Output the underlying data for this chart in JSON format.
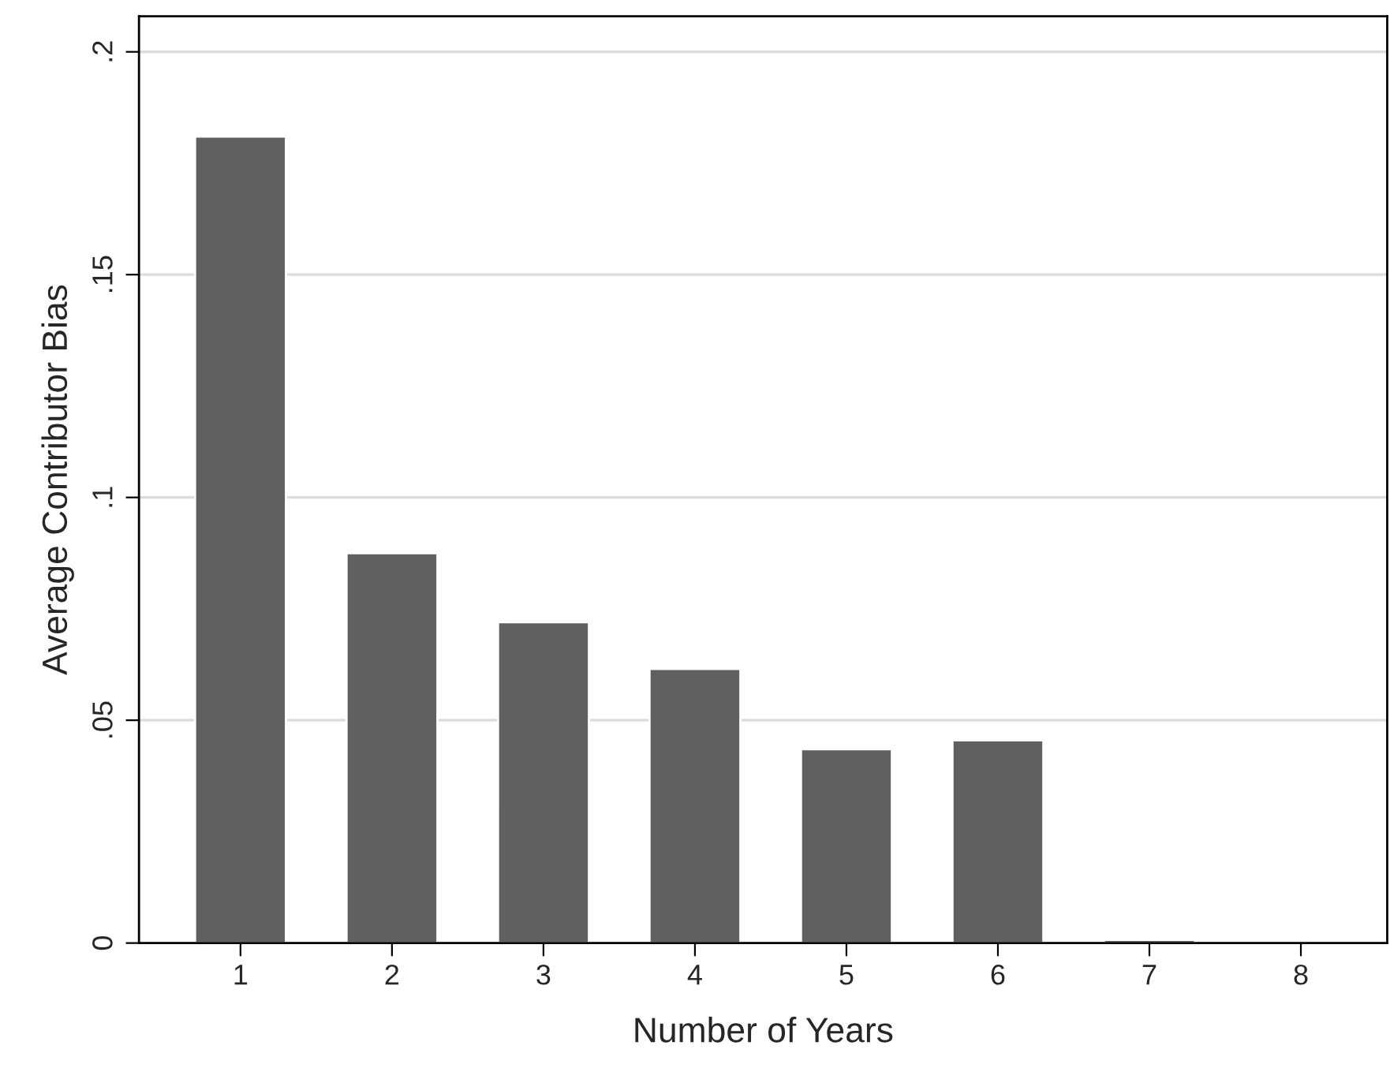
{
  "chart_data": {
    "type": "bar",
    "xlabel": "Number of Years",
    "ylabel": "Average Contributor Bias",
    "categories": [
      "1",
      "2",
      "3",
      "4",
      "5",
      "6",
      "7",
      "8"
    ],
    "values": [
      0.181,
      0.0875,
      0.072,
      0.0615,
      0.0435,
      0.0455,
      0.0007,
      null
    ],
    "color": "#606060",
    "ylim": [
      0,
      0.208
    ],
    "yticks": [
      {
        "value": 0,
        "label": "0"
      },
      {
        "value": 0.05,
        "label": ".05"
      },
      {
        "value": 0.1,
        "label": ".1"
      },
      {
        "value": 0.15,
        "label": ".15"
      },
      {
        "value": 0.2,
        "label": ".2"
      }
    ],
    "grid": "y",
    "legend": false
  }
}
